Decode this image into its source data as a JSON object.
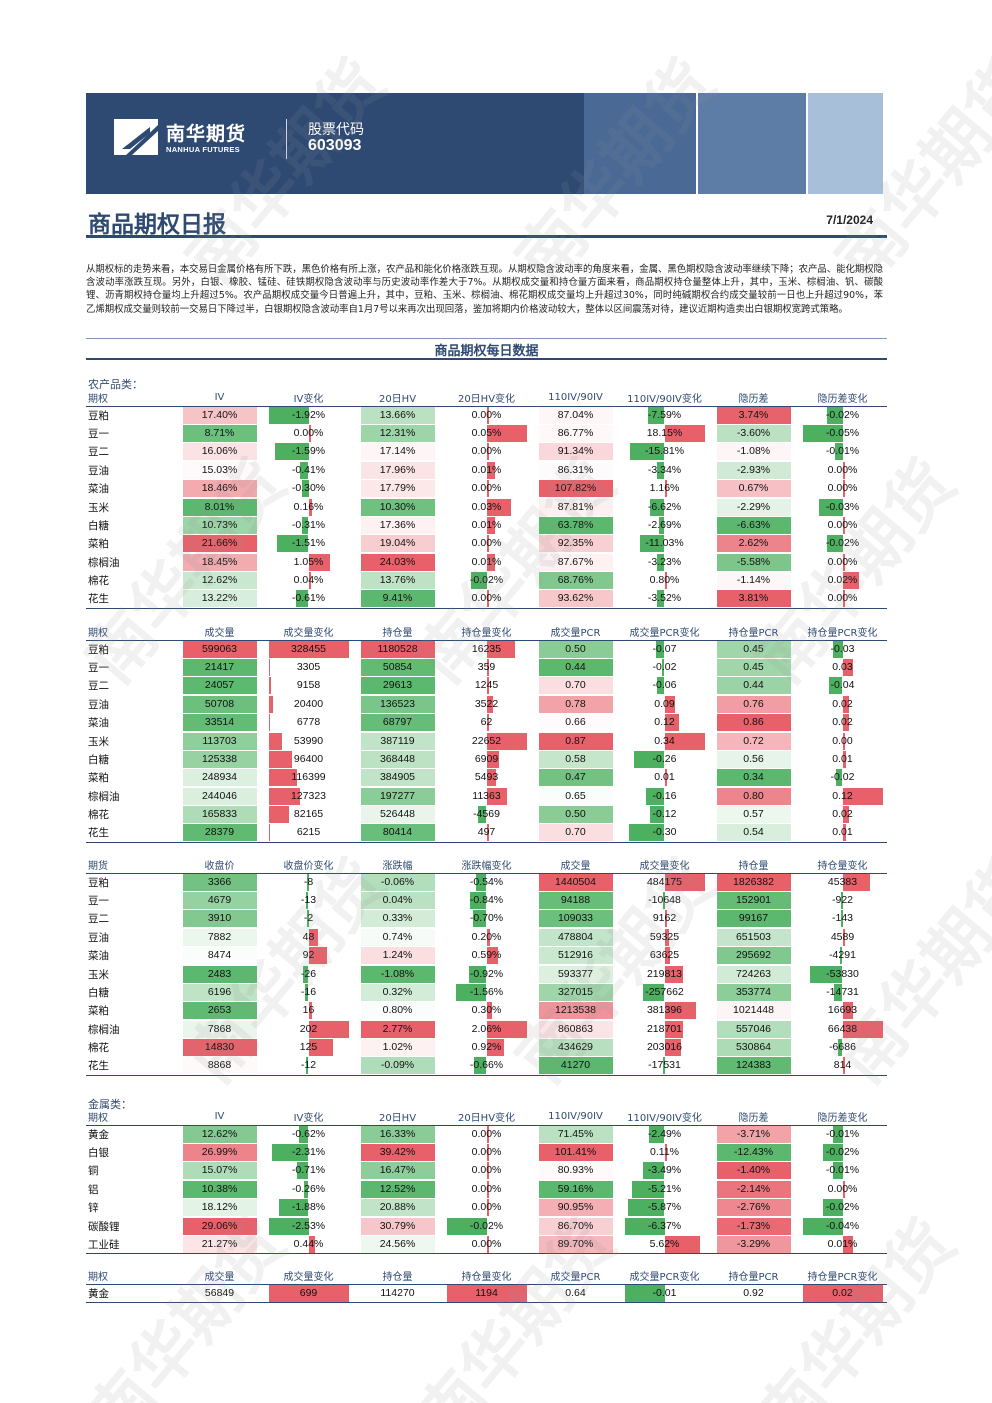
{
  "header": {
    "logo_cn": "南华期货",
    "logo_en": "NANHUA FUTURES",
    "code_label": "股票代码",
    "code_value": "603093"
  },
  "title": "商品期权日报",
  "date": "7/1/2024",
  "summary": "从期权标的走势来看，本交易日金属价格有所下跌，黑色价格有所上涨，农产品和能化价格涨跌互现。从期权隐含波动率的角度来看，金属、黑色期权隐含波动率继续下降；农产品、能化期权隐含波动率涨跌互现。另外，白银、橡胶、锰硅、硅铁期权隐含波动率与历史波动率作差大于7%。从期权成交量和持仓量方面来看，商品期权持仓量整体上升，其中，玉米、棕榈油、钒、碳酸锂、沥青期权持仓量均上升超过5%。农产品期权成交量今日普遍上升，其中，豆粕、玉米、棕榈油、棉花期权成交量均上升超过30%，同时纯碱期权合约成交量较前一日也上升超过90%，苯乙烯期权成交量则较前一交易日下降过半，白银期权隐含波动率自1月7号以来再次出现回落，鉴加将期内价格波动较大，整体以区间震荡对待，建议近期构造卖出白银期权宽跨式策略。",
  "section_title": "商品期权每日数据",
  "watermark": "南华期货",
  "ag": {
    "label": "农产品类：",
    "iv_table": {
      "headers": [
        "期权",
        "IV",
        "IV变化",
        "20日HV",
        "20日HV变化",
        "110IV/90IV",
        "110IV/90IV变化",
        "隐历差",
        "隐历差变化"
      ],
      "rows": [
        {
          "name": "豆粕",
          "iv": "17.40%",
          "iv_chg": "-1.92%",
          "hv": "13.66%",
          "hv_chg": "0.00%",
          "skew": "87.04%",
          "skew_chg": "-7.59%",
          "spread": "3.74%",
          "spread_chg": "-0.02%"
        },
        {
          "name": "豆一",
          "iv": "8.71%",
          "iv_chg": "0.00%",
          "hv": "12.31%",
          "hv_chg": "0.05%",
          "skew": "86.77%",
          "skew_chg": "18.15%",
          "spread": "-3.60%",
          "spread_chg": "-0.05%"
        },
        {
          "name": "豆二",
          "iv": "16.06%",
          "iv_chg": "-1.59%",
          "hv": "17.14%",
          "hv_chg": "0.00%",
          "skew": "91.34%",
          "skew_chg": "-15.81%",
          "spread": "-1.08%",
          "spread_chg": "-0.01%"
        },
        {
          "name": "豆油",
          "iv": "15.03%",
          "iv_chg": "-0.41%",
          "hv": "17.96%",
          "hv_chg": "0.01%",
          "skew": "86.31%",
          "skew_chg": "-3.34%",
          "spread": "-2.93%",
          "spread_chg": "0.00%"
        },
        {
          "name": "菜油",
          "iv": "18.46%",
          "iv_chg": "-0.30%",
          "hv": "17.79%",
          "hv_chg": "0.00%",
          "skew": "107.82%",
          "skew_chg": "1.16%",
          "spread": "0.67%",
          "spread_chg": "0.00%"
        },
        {
          "name": "玉米",
          "iv": "8.01%",
          "iv_chg": "0.16%",
          "hv": "10.30%",
          "hv_chg": "0.03%",
          "skew": "87.81%",
          "skew_chg": "-6.62%",
          "spread": "-2.29%",
          "spread_chg": "-0.03%"
        },
        {
          "name": "白糖",
          "iv": "10.73%",
          "iv_chg": "-0.31%",
          "hv": "17.36%",
          "hv_chg": "0.01%",
          "skew": "63.78%",
          "skew_chg": "-2.69%",
          "spread": "-6.63%",
          "spread_chg": "0.00%"
        },
        {
          "name": "菜粕",
          "iv": "21.66%",
          "iv_chg": "-1.51%",
          "hv": "19.04%",
          "hv_chg": "0.00%",
          "skew": "92.35%",
          "skew_chg": "-11.03%",
          "spread": "2.62%",
          "spread_chg": "-0.02%"
        },
        {
          "name": "棕榈油",
          "iv": "18.45%",
          "iv_chg": "1.05%",
          "hv": "24.03%",
          "hv_chg": "0.01%",
          "skew": "87.67%",
          "skew_chg": "-3.23%",
          "spread": "-5.58%",
          "spread_chg": "0.00%"
        },
        {
          "name": "棉花",
          "iv": "12.62%",
          "iv_chg": "0.04%",
          "hv": "13.76%",
          "hv_chg": "-0.02%",
          "skew": "68.76%",
          "skew_chg": "0.80%",
          "spread": "-1.14%",
          "spread_chg": "0.02%"
        },
        {
          "name": "花生",
          "iv": "13.22%",
          "iv_chg": "-0.61%",
          "hv": "9.41%",
          "hv_chg": "0.00%",
          "skew": "93.62%",
          "skew_chg": "-3.52%",
          "spread": "3.81%",
          "spread_chg": "0.00%"
        }
      ]
    },
    "vol_table": {
      "headers": [
        "期权",
        "成交量",
        "成交量变化",
        "持仓量",
        "持仓量变化",
        "成交量PCR",
        "成交量PCR变化",
        "持仓量PCR",
        "持仓量PCR变化"
      ],
      "rows": [
        {
          "name": "豆粕",
          "vol": "599063",
          "vol_chg": "328455",
          "oi": "1180528",
          "oi_chg": "16235",
          "vpcr": "0.50",
          "vpcr_chg": "-0.07",
          "opcr": "0.45",
          "opcr_chg": "-0.03"
        },
        {
          "name": "豆一",
          "vol": "21417",
          "vol_chg": "3305",
          "oi": "50854",
          "oi_chg": "359",
          "vpcr": "0.44",
          "vpcr_chg": "-0.02",
          "opcr": "0.45",
          "opcr_chg": "0.03"
        },
        {
          "name": "豆二",
          "vol": "24057",
          "vol_chg": "9158",
          "oi": "29613",
          "oi_chg": "1245",
          "vpcr": "0.70",
          "vpcr_chg": "-0.06",
          "opcr": "0.44",
          "opcr_chg": "-0.04"
        },
        {
          "name": "豆油",
          "vol": "50708",
          "vol_chg": "20400",
          "oi": "136523",
          "oi_chg": "3522",
          "vpcr": "0.78",
          "vpcr_chg": "0.09",
          "opcr": "0.76",
          "opcr_chg": "0.02"
        },
        {
          "name": "菜油",
          "vol": "33514",
          "vol_chg": "6778",
          "oi": "68797",
          "oi_chg": "62",
          "vpcr": "0.66",
          "vpcr_chg": "0.12",
          "opcr": "0.86",
          "opcr_chg": "0.02"
        },
        {
          "name": "玉米",
          "vol": "113703",
          "vol_chg": "53990",
          "oi": "387119",
          "oi_chg": "22652",
          "vpcr": "0.87",
          "vpcr_chg": "0.34",
          "opcr": "0.72",
          "opcr_chg": "0.00"
        },
        {
          "name": "白糖",
          "vol": "125338",
          "vol_chg": "96400",
          "oi": "368448",
          "oi_chg": "6909",
          "vpcr": "0.58",
          "vpcr_chg": "-0.26",
          "opcr": "0.56",
          "opcr_chg": "0.01"
        },
        {
          "name": "菜粕",
          "vol": "248934",
          "vol_chg": "116399",
          "oi": "384905",
          "oi_chg": "5493",
          "vpcr": "0.47",
          "vpcr_chg": "0.01",
          "opcr": "0.34",
          "opcr_chg": "-0.02"
        },
        {
          "name": "棕榈油",
          "vol": "244046",
          "vol_chg": "127323",
          "oi": "197277",
          "oi_chg": "11363",
          "vpcr": "0.65",
          "vpcr_chg": "-0.16",
          "opcr": "0.80",
          "opcr_chg": "0.12"
        },
        {
          "name": "棉花",
          "vol": "165833",
          "vol_chg": "82165",
          "oi": "526448",
          "oi_chg": "-4569",
          "vpcr": "0.50",
          "vpcr_chg": "-0.12",
          "opcr": "0.57",
          "opcr_chg": "0.02"
        },
        {
          "name": "花生",
          "vol": "28379",
          "vol_chg": "6215",
          "oi": "80414",
          "oi_chg": "497",
          "vpcr": "0.70",
          "vpcr_chg": "-0.30",
          "opcr": "0.54",
          "opcr_chg": "0.01"
        }
      ]
    },
    "fut_table": {
      "headers": [
        "期货",
        "收盘价",
        "收盘价变化",
        "涨跌幅",
        "涨跌幅变化",
        "成交量",
        "成交量变化",
        "持仓量",
        "持仓量变化"
      ],
      "rows": [
        {
          "name": "豆粕",
          "close": "3366",
          "close_chg": "-8",
          "pct": "-0.06%",
          "pct_chg": "-0.54%",
          "vol": "1440504",
          "vol_chg": "484175",
          "oi": "1826382",
          "oi_chg": "45383"
        },
        {
          "name": "豆一",
          "close": "4679",
          "close_chg": "-13",
          "pct": "0.04%",
          "pct_chg": "-0.84%",
          "vol": "94188",
          "vol_chg": "-10648",
          "oi": "152901",
          "oi_chg": "-922"
        },
        {
          "name": "豆二",
          "close": "3910",
          "close_chg": "-2",
          "pct": "0.33%",
          "pct_chg": "-0.70%",
          "vol": "109033",
          "vol_chg": "9162",
          "oi": "99167",
          "oi_chg": "-143"
        },
        {
          "name": "豆油",
          "close": "7882",
          "close_chg": "48",
          "pct": "0.74%",
          "pct_chg": "0.20%",
          "vol": "478804",
          "vol_chg": "59325",
          "oi": "651503",
          "oi_chg": "4589"
        },
        {
          "name": "菜油",
          "close": "8474",
          "close_chg": "92",
          "pct": "1.24%",
          "pct_chg": "0.59%",
          "vol": "512916",
          "vol_chg": "63625",
          "oi": "295692",
          "oi_chg": "-4291"
        },
        {
          "name": "玉米",
          "close": "2483",
          "close_chg": "-26",
          "pct": "-1.08%",
          "pct_chg": "-0.92%",
          "vol": "593377",
          "vol_chg": "219813",
          "oi": "724263",
          "oi_chg": "-53830"
        },
        {
          "name": "白糖",
          "close": "6196",
          "close_chg": "-16",
          "pct": "0.32%",
          "pct_chg": "-1.56%",
          "vol": "327015",
          "vol_chg": "-257662",
          "oi": "353774",
          "oi_chg": "-14731"
        },
        {
          "name": "菜粕",
          "close": "2653",
          "close_chg": "16",
          "pct": "0.80%",
          "pct_chg": "0.30%",
          "vol": "1213538",
          "vol_chg": "381396",
          "oi": "1021448",
          "oi_chg": "16693"
        },
        {
          "name": "棕榈油",
          "close": "7868",
          "close_chg": "202",
          "pct": "2.77%",
          "pct_chg": "2.06%",
          "vol": "860863",
          "vol_chg": "218701",
          "oi": "557046",
          "oi_chg": "66438"
        },
        {
          "name": "棉花",
          "close": "14830",
          "close_chg": "125",
          "pct": "1.02%",
          "pct_chg": "0.92%",
          "vol": "434629",
          "vol_chg": "203016",
          "oi": "530864",
          "oi_chg": "-6686"
        },
        {
          "name": "花生",
          "close": "8868",
          "close_chg": "-12",
          "pct": "-0.09%",
          "pct_chg": "-0.66%",
          "vol": "41270",
          "vol_chg": "-17531",
          "oi": "124383",
          "oi_chg": "814"
        }
      ]
    }
  },
  "metal": {
    "label": "金属类：",
    "iv_table": {
      "headers": [
        "期权",
        "IV",
        "IV变化",
        "20日HV",
        "20日HV变化",
        "110IV/90IV",
        "110IV/90IV变化",
        "隐历差",
        "隐历差变化"
      ],
      "rows": [
        {
          "name": "黄金",
          "iv": "12.62%",
          "iv_chg": "-0.62%",
          "hv": "16.33%",
          "hv_chg": "0.00%",
          "skew": "71.45%",
          "skew_chg": "-2.49%",
          "spread": "-3.71%",
          "spread_chg": "-0.01%"
        },
        {
          "name": "白银",
          "iv": "26.99%",
          "iv_chg": "-2.31%",
          "hv": "39.42%",
          "hv_chg": "0.00%",
          "skew": "101.41%",
          "skew_chg": "0.11%",
          "spread": "-12.43%",
          "spread_chg": "-0.02%"
        },
        {
          "name": "铜",
          "iv": "15.07%",
          "iv_chg": "-0.71%",
          "hv": "16.47%",
          "hv_chg": "0.00%",
          "skew": "80.93%",
          "skew_chg": "-3.49%",
          "spread": "-1.40%",
          "spread_chg": "-0.01%"
        },
        {
          "name": "铝",
          "iv": "10.38%",
          "iv_chg": "-0.26%",
          "hv": "12.52%",
          "hv_chg": "0.00%",
          "skew": "59.16%",
          "skew_chg": "-5.21%",
          "spread": "-2.14%",
          "spread_chg": "0.00%"
        },
        {
          "name": "锌",
          "iv": "18.12%",
          "iv_chg": "-1.88%",
          "hv": "20.88%",
          "hv_chg": "0.00%",
          "skew": "90.95%",
          "skew_chg": "-5.87%",
          "spread": "-2.76%",
          "spread_chg": "-0.02%"
        },
        {
          "name": "碳酸锂",
          "iv": "29.06%",
          "iv_chg": "-2.53%",
          "hv": "30.79%",
          "hv_chg": "-0.02%",
          "skew": "86.70%",
          "skew_chg": "-6.37%",
          "spread": "-1.73%",
          "spread_chg": "-0.04%"
        },
        {
          "name": "工业硅",
          "iv": "21.27%",
          "iv_chg": "0.44%",
          "hv": "24.56%",
          "hv_chg": "0.00%",
          "skew": "89.70%",
          "skew_chg": "5.62%",
          "spread": "-3.29%",
          "spread_chg": "0.01%"
        }
      ]
    },
    "vol_table": {
      "headers": [
        "期权",
        "成交量",
        "成交量变化",
        "持仓量",
        "持仓量变化",
        "成交量PCR",
        "成交量PCR变化",
        "持仓量PCR",
        "持仓量PCR变化"
      ],
      "rows": [
        {
          "name": "黄金",
          "vol": "56849",
          "vol_chg": "699",
          "oi": "114270",
          "oi_chg": "1194",
          "vpcr": "0.64",
          "vpcr_chg": "-0.01",
          "opcr": "0.92",
          "opcr_chg": "0.02"
        }
      ]
    }
  },
  "colors": {
    "brand": "#2f4a72",
    "heat_high": "#e8606a",
    "heat_low": "#5cb86e",
    "bar_pos": "#e8606a",
    "bar_neg": "#4cb060"
  }
}
